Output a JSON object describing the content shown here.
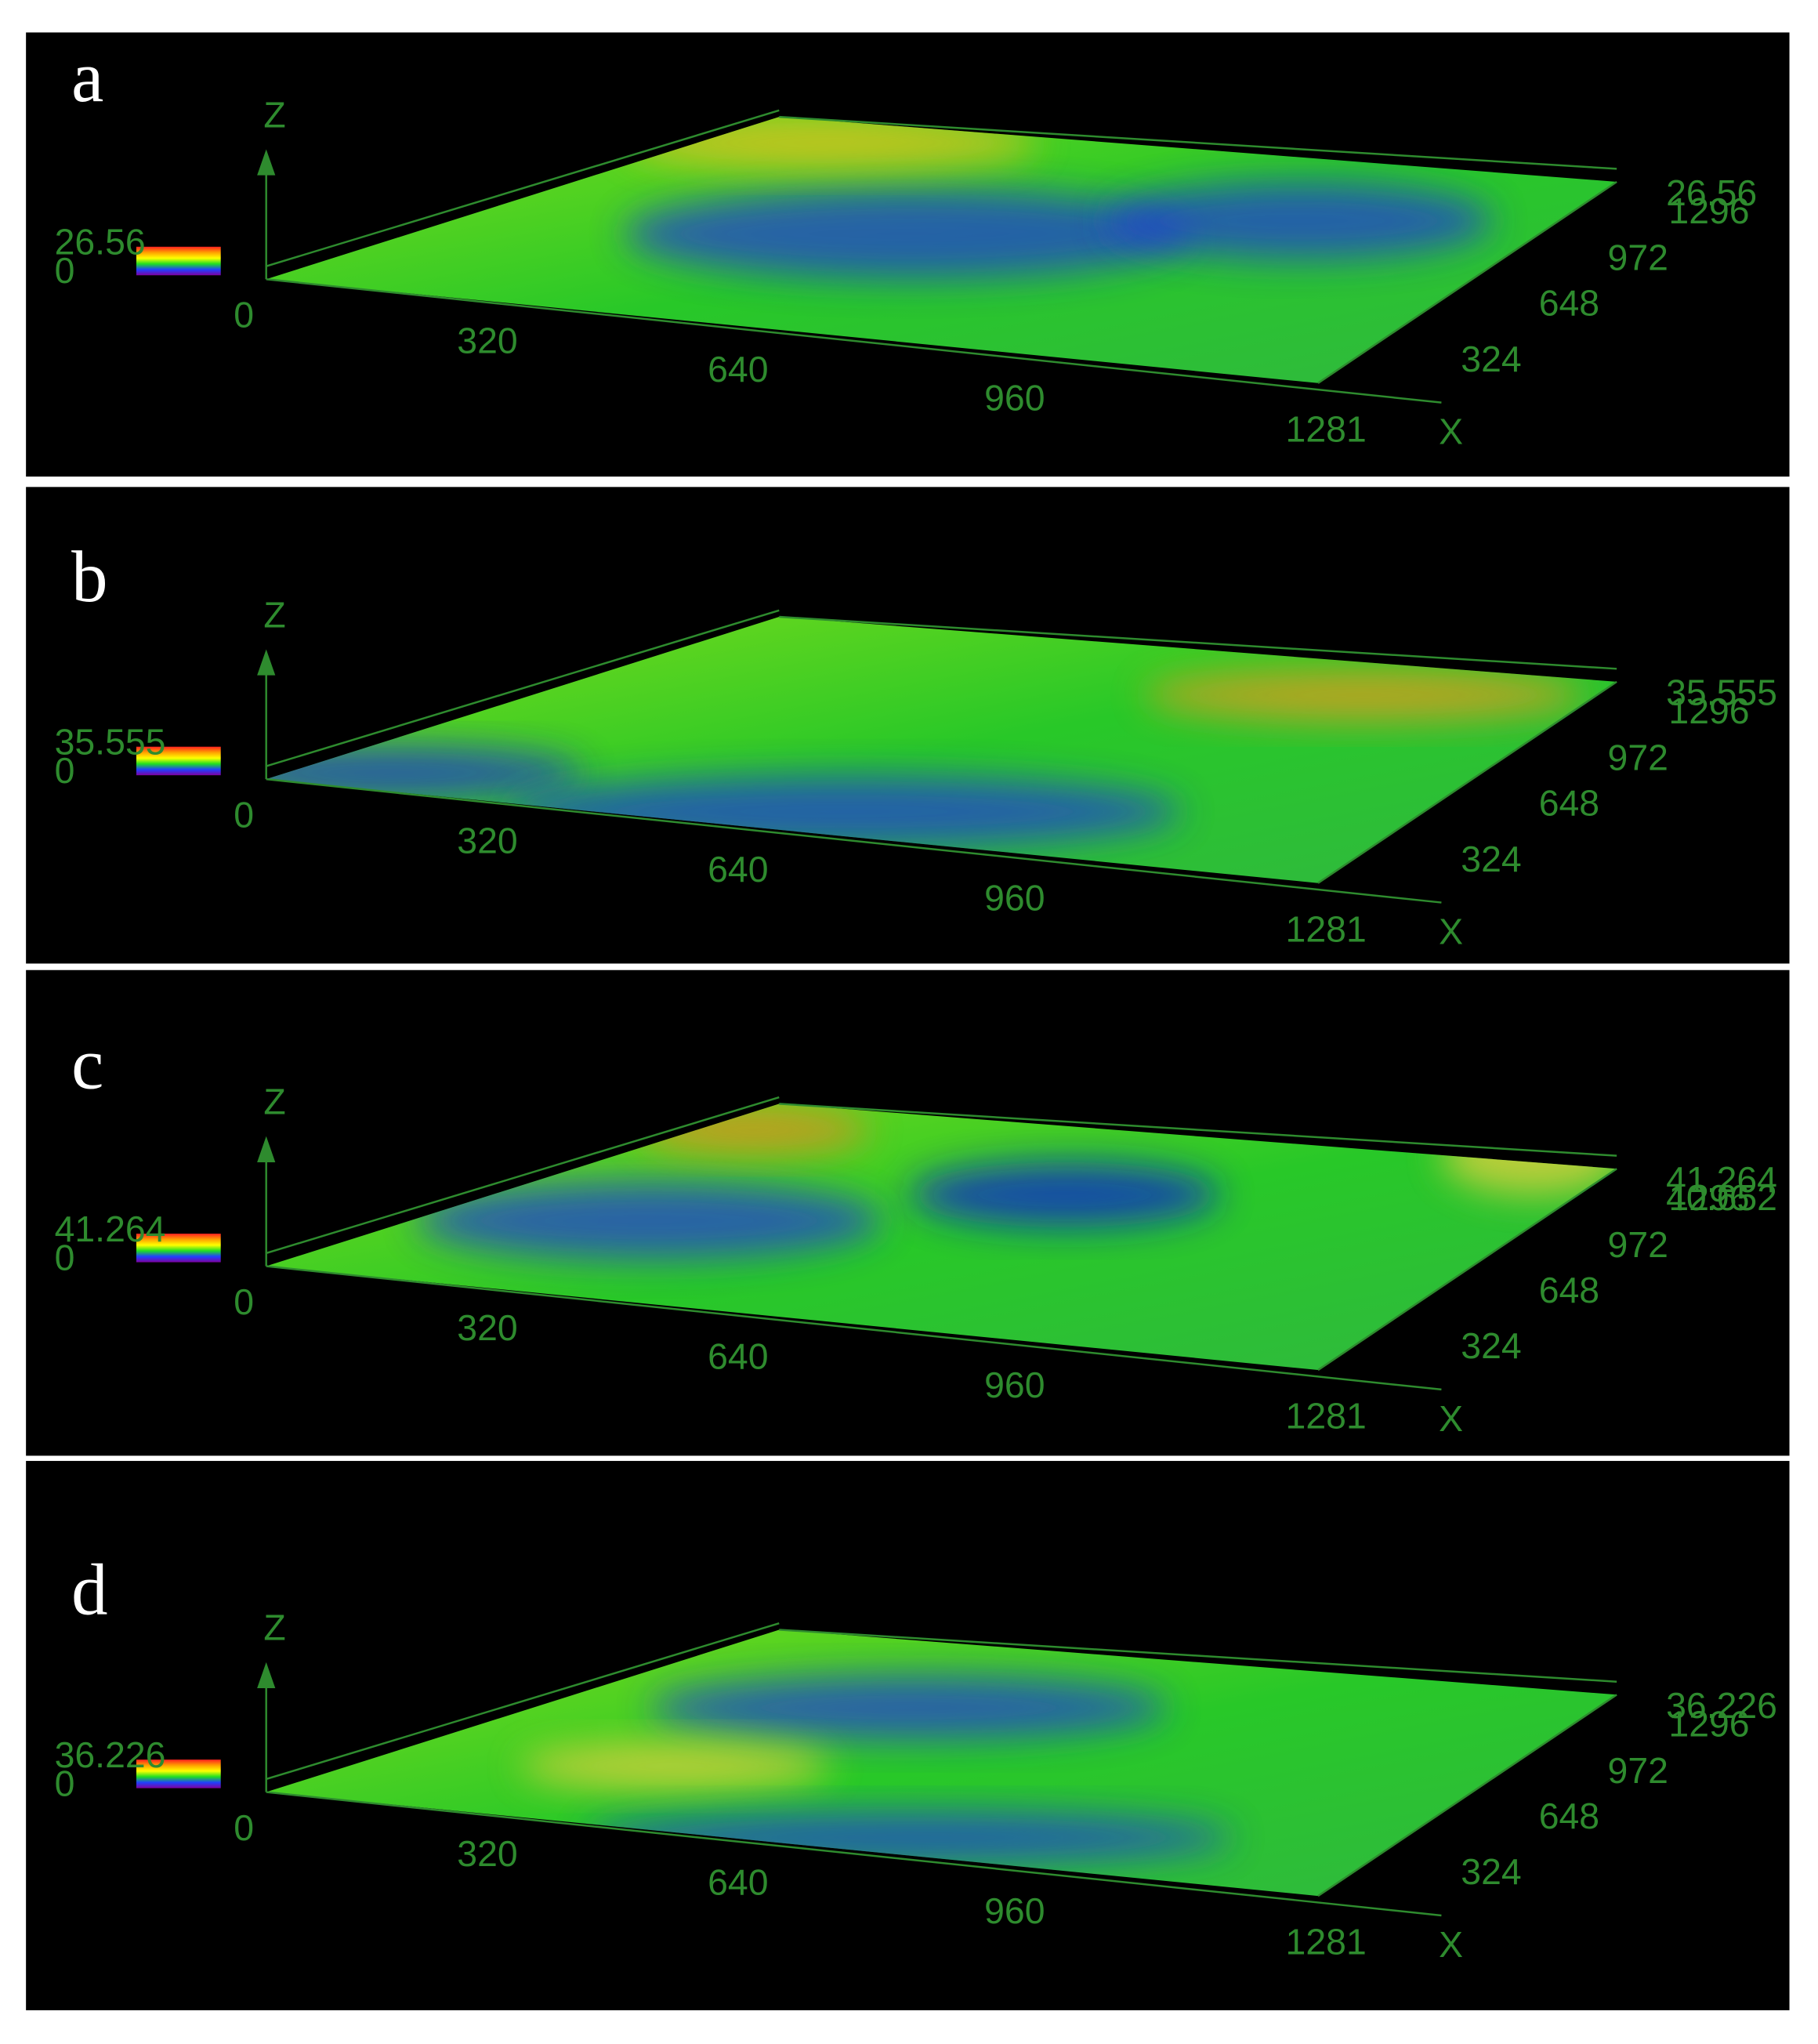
{
  "panels": [
    {
      "label": "a",
      "z_axis": "Z",
      "x_axis": "X",
      "scale_max": "26.56",
      "scale_min": "0",
      "origin": "0",
      "x_ticks": [
        "320",
        "640",
        "960",
        "1281"
      ],
      "y_ticks": [
        "324",
        "648",
        "972",
        "1296"
      ],
      "max_labels": [
        "26.56"
      ]
    },
    {
      "label": "b",
      "z_axis": "Z",
      "x_axis": "X",
      "scale_max": "35.555",
      "scale_min": "0",
      "origin": "0",
      "x_ticks": [
        "320",
        "640",
        "960",
        "1281"
      ],
      "y_ticks": [
        "324",
        "648",
        "972",
        "1296"
      ],
      "max_labels": [
        "35.555"
      ]
    },
    {
      "label": "c",
      "z_axis": "Z",
      "x_axis": "X",
      "scale_max": "41.264",
      "scale_min": "0",
      "origin": "0",
      "x_ticks": [
        "320",
        "640",
        "960",
        "1281"
      ],
      "y_ticks": [
        "324",
        "648",
        "972",
        "1296"
      ],
      "max_labels": [
        "41.264",
        "40.652"
      ]
    },
    {
      "label": "d",
      "z_axis": "Z",
      "x_axis": "X",
      "scale_max": "36.226",
      "scale_min": "0",
      "origin": "0",
      "x_ticks": [
        "320",
        "640",
        "960",
        "1281"
      ],
      "y_ticks": [
        "324",
        "648",
        "972",
        "1296"
      ],
      "max_labels": [
        "36.226"
      ]
    }
  ]
}
